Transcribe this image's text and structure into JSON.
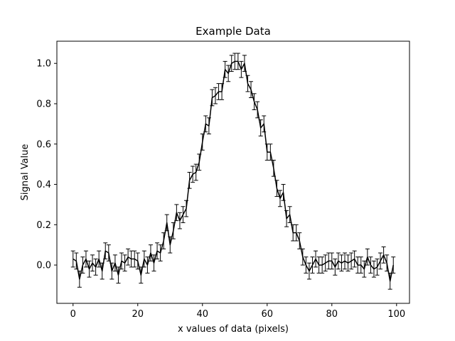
{
  "chart_data": {
    "type": "line",
    "title": "Example Data",
    "xlabel": "x values of data (pixels)",
    "ylabel": "Signal Value",
    "xlim": [
      -5,
      104
    ],
    "ylim": [
      -0.19,
      1.11
    ],
    "xticks": [
      0,
      20,
      40,
      60,
      80,
      100
    ],
    "yticks": [
      0.0,
      0.2,
      0.4,
      0.6,
      0.8,
      1.0
    ],
    "xtick_labels": [
      "0",
      "20",
      "40",
      "60",
      "80",
      "100"
    ],
    "ytick_labels": [
      "0.0",
      "0.2",
      "0.4",
      "0.6",
      "0.8",
      "1.0"
    ],
    "grid": false,
    "legend": "none",
    "line_color": "#000000",
    "error_bar": 0.04,
    "series": [
      {
        "x": [
          0,
          1,
          2,
          3,
          4,
          5,
          6,
          7,
          8,
          9,
          10,
          11,
          12,
          13,
          14,
          15,
          16,
          17,
          18,
          19,
          20,
          21,
          22,
          23,
          24,
          25,
          26,
          27,
          28,
          29,
          30,
          31,
          32,
          33,
          34,
          35,
          36,
          37,
          38,
          39,
          40,
          41,
          42,
          43,
          44,
          45,
          46,
          47,
          48,
          49,
          50,
          51,
          52,
          53,
          54,
          55,
          56,
          57,
          58,
          59,
          60,
          61,
          62,
          63,
          64,
          65,
          66,
          67,
          68,
          69,
          70,
          71,
          72,
          73,
          74,
          75,
          76,
          77,
          78,
          79,
          80,
          81,
          82,
          83,
          84,
          85,
          86,
          87,
          88,
          89,
          90,
          91,
          92,
          93,
          94,
          95,
          96,
          97,
          98,
          99
        ],
        "y": [
          0.03,
          0.02,
          -0.07,
          0.0,
          0.03,
          -0.02,
          0.01,
          -0.01,
          0.03,
          -0.03,
          0.07,
          0.06,
          -0.03,
          0.01,
          -0.05,
          0.02,
          0.01,
          0.04,
          0.03,
          0.03,
          0.02,
          -0.05,
          0.03,
          0.0,
          0.06,
          0.01,
          0.07,
          0.06,
          0.12,
          0.21,
          0.1,
          0.17,
          0.26,
          0.22,
          0.25,
          0.28,
          0.42,
          0.45,
          0.46,
          0.51,
          0.61,
          0.7,
          0.69,
          0.83,
          0.84,
          0.86,
          0.86,
          0.97,
          0.95,
          1.0,
          1.01,
          1.01,
          0.97,
          1.0,
          0.9,
          0.87,
          0.81,
          0.77,
          0.68,
          0.7,
          0.56,
          0.56,
          0.48,
          0.38,
          0.33,
          0.36,
          0.23,
          0.25,
          0.16,
          0.16,
          0.12,
          0.04,
          0.0,
          -0.03,
          0.0,
          0.03,
          0.0,
          0.0,
          0.01,
          0.02,
          0.02,
          -0.01,
          0.02,
          0.01,
          0.02,
          0.01,
          0.02,
          0.03,
          0.0,
          0.0,
          -0.02,
          0.04,
          0.0,
          -0.02,
          -0.01,
          0.02,
          0.05,
          0.01,
          -0.08,
          0.0
        ]
      }
    ]
  }
}
